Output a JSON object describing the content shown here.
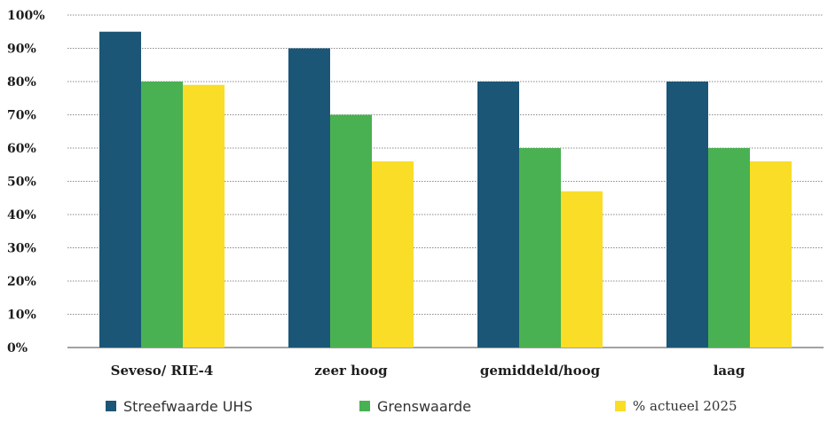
{
  "chart_data": {
    "type": "bar",
    "categories": [
      "Seveso/ RIE-4",
      "zeer hoog",
      "gemiddeld/hoog",
      "laag"
    ],
    "series": [
      {
        "name": "Streefwaarde UHS",
        "values": [
          95,
          90,
          80,
          80
        ],
        "color": "#1b5677"
      },
      {
        "name": "Grenswaarde",
        "values": [
          80,
          70,
          60,
          60
        ],
        "color": "#49b152"
      },
      {
        "name": "% actueel 2025",
        "values": [
          79,
          56,
          47,
          56
        ],
        "color": "#f9dd27"
      }
    ],
    "y_ticks": [
      "0%",
      "10%",
      "20%",
      "30%",
      "40%",
      "50%",
      "60%",
      "70%",
      "80%",
      "90%",
      "100%"
    ],
    "ylim": [
      0,
      100
    ],
    "grid": true,
    "grid_style": "dotted",
    "legend_position": "bottom",
    "title": "",
    "xlabel": "",
    "ylabel": ""
  }
}
